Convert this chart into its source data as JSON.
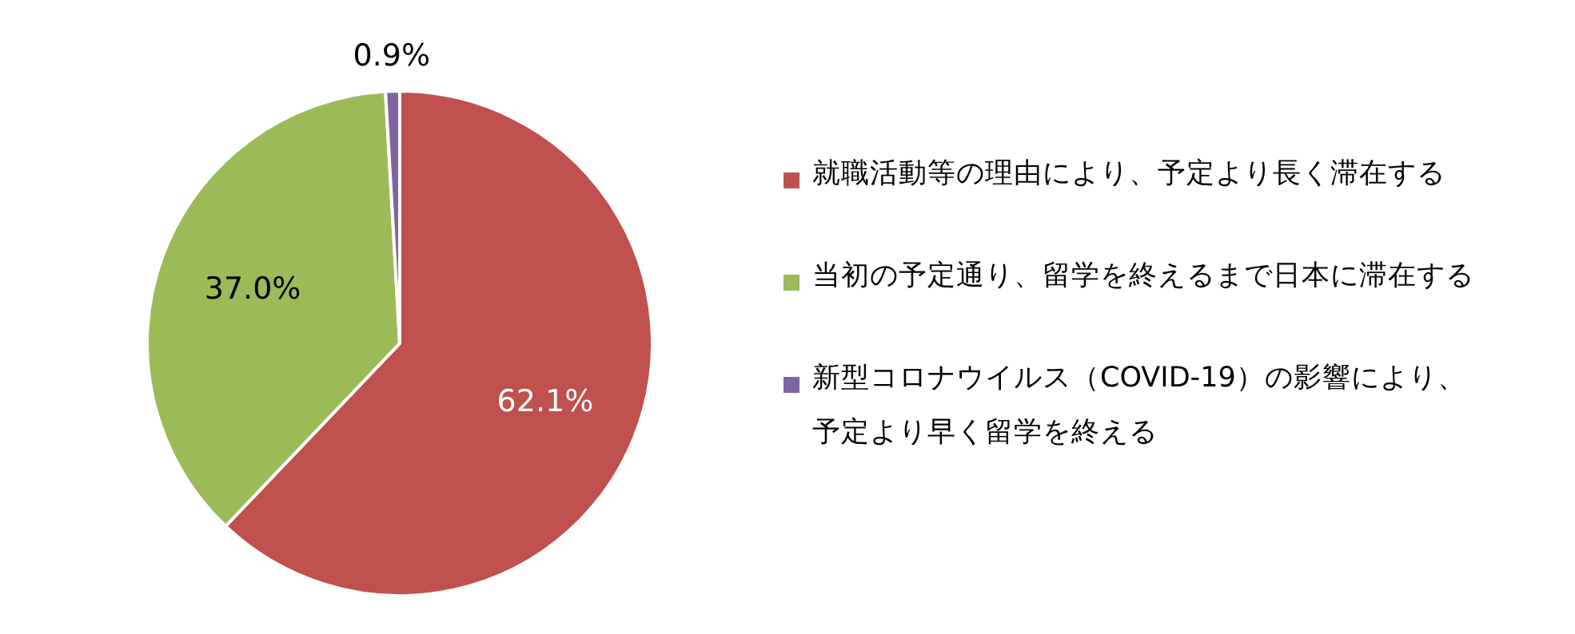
{
  "chart_data": {
    "type": "pie",
    "categories": [
      "就職活動等の理由により、予定より長く滞在する",
      "当初の予定通り、留学を終えるまで日本に滞在する",
      "新型コロナウイルス（COVID-19）の影響により、予定より早く留学を終える"
    ],
    "values": [
      62.1,
      37.0,
      0.9
    ],
    "colors": [
      "#c0504d",
      "#9bbb59",
      "#8064a2"
    ],
    "value_labels": [
      "62.1%",
      "37.0%",
      "0.9%"
    ],
    "legend": "right"
  }
}
